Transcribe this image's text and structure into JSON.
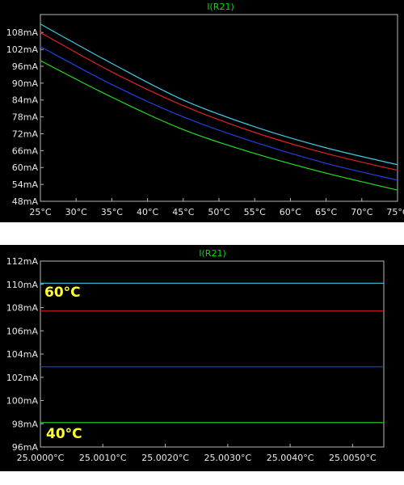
{
  "chart_data": [
    {
      "type": "line",
      "title": "I(R21)",
      "x_unit": "°C",
      "y_unit": "mA",
      "x_ticks": [
        "25°C",
        "30°C",
        "35°C",
        "40°C",
        "45°C",
        "50°C",
        "55°C",
        "60°C",
        "65°C",
        "70°C",
        "75°C"
      ],
      "y_ticks": [
        "48mA",
        "54mA",
        "60mA",
        "66mA",
        "72mA",
        "78mA",
        "84mA",
        "90mA",
        "96mA",
        "102mA",
        "108mA"
      ],
      "xlim": [
        25,
        75
      ],
      "ylim": [
        48,
        112
      ],
      "x": [
        25,
        35,
        45,
        55,
        65,
        75
      ],
      "series": [
        {
          "color": "#40c8e0",
          "values": [
            111.0,
            97.0,
            84.0,
            74.5,
            67.0,
            61.0
          ]
        },
        {
          "color": "#e02020",
          "values": [
            108.0,
            94.0,
            82.0,
            72.5,
            65.0,
            59.0
          ]
        },
        {
          "color": "#2040e0",
          "values": [
            103.0,
            89.5,
            78.0,
            69.0,
            61.5,
            55.5
          ]
        },
        {
          "color": "#20e020",
          "values": [
            98.0,
            85.0,
            73.5,
            65.0,
            58.0,
            52.0
          ]
        }
      ]
    },
    {
      "type": "line",
      "title": "I(R21)",
      "x_unit": "°C",
      "y_unit": "mA",
      "x_ticks": [
        "25.0000°C",
        "25.0010°C",
        "25.0020°C",
        "25.0030°C",
        "25.0040°C",
        "25.0050°C"
      ],
      "y_ticks": [
        "96mA",
        "98mA",
        "100mA",
        "102mA",
        "104mA",
        "106mA",
        "108mA",
        "110mA",
        "112mA"
      ],
      "xlim": [
        25.0,
        25.0055
      ],
      "ylim": [
        96,
        112
      ],
      "x": [
        25.0,
        25.0055
      ],
      "series": [
        {
          "color": "#40c8e0",
          "values": [
            110.1,
            110.1
          ]
        },
        {
          "color": "#e02020",
          "values": [
            107.7,
            107.7
          ]
        },
        {
          "color": "#2040e0",
          "values": [
            102.9,
            102.9
          ]
        },
        {
          "color": "#20e020",
          "values": [
            98.1,
            98.1
          ]
        }
      ],
      "annotations": [
        "60°C",
        "40°C"
      ]
    }
  ]
}
